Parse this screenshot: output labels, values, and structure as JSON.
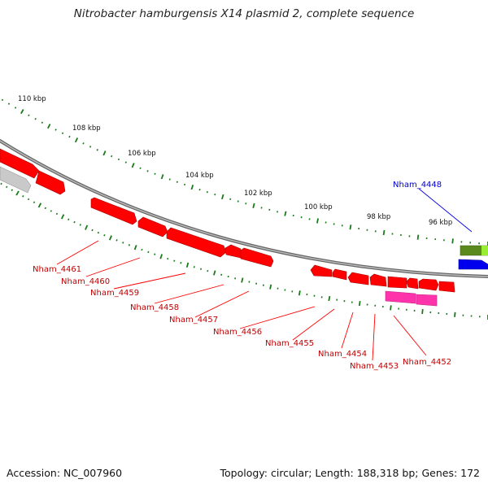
{
  "header": {
    "title": "Nitrobacter hamburgensis X14 plasmid 2, complete sequence"
  },
  "footer": {
    "accession": "Accession: NC_007960",
    "summary": "Topology: circular; Length: 188,318 bp; Genes: 172"
  },
  "scale": {
    "ticks": [
      "110 kbp",
      "108 kbp",
      "106 kbp",
      "104 kbp",
      "102 kbp",
      "100 kbp",
      "98 kbp",
      "96 kbp"
    ]
  },
  "genes": {
    "labels_red": [
      "Nham_4461",
      "Nham_4460",
      "Nham_4459",
      "Nham_4458",
      "Nham_4457",
      "Nham_4456",
      "Nham_4455",
      "Nham_4454",
      "Nham_4453",
      "Nham_4452"
    ],
    "label_blue": "Nham_4448"
  },
  "colors": {
    "cds": "#ff0000",
    "highlight": "#ff33aa",
    "rna_green": "#5a8a1e",
    "rna_lime": "#99ee33",
    "forward_blue": "#0000ee",
    "grey_feature": "#b8b8b8",
    "backbone": "#777777",
    "ticks": "#1a7a1a"
  }
}
